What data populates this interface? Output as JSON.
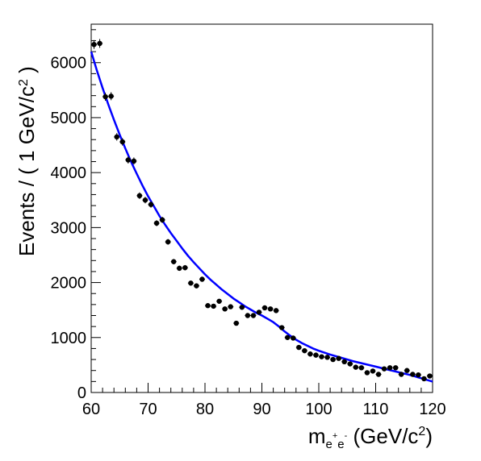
{
  "chart_data": {
    "type": "scatter",
    "title": "",
    "ylabel": {
      "prefix": "Events / ( 1 GeV/c",
      "sup": "2",
      "suffix": " )"
    },
    "xlabel": {
      "m": "m",
      "sub1": "e",
      "sup1": "+",
      "sub2": "e",
      "sup2": "-",
      "unit_prefix": " (GeV/c",
      "unit_sup": "2",
      "unit_suffix": ")"
    },
    "xlim": [
      60,
      120
    ],
    "ylim": [
      0,
      6700
    ],
    "x_ticks": [
      60,
      70,
      80,
      90,
      100,
      110,
      120
    ],
    "y_ticks": [
      0,
      1000,
      2000,
      3000,
      4000,
      5000,
      6000
    ],
    "grid": false,
    "colors": {
      "points": "#000000",
      "fit": "#0000ff"
    },
    "series": [
      {
        "kind": "data",
        "x": [
          60.5,
          61.5,
          62.5,
          63.5,
          64.5,
          65.5,
          66.5,
          67.5,
          68.5,
          69.5,
          70.5,
          71.5,
          72.5,
          73.5,
          74.5,
          75.5,
          76.5,
          77.5,
          78.5,
          79.5,
          80.5,
          81.5,
          82.5,
          83.5,
          84.5,
          85.5,
          86.5,
          87.5,
          88.5,
          89.5,
          90.5,
          91.5,
          92.5,
          93.5,
          94.5,
          95.5,
          96.5,
          97.5,
          98.5,
          99.5,
          100.5,
          101.5,
          102.5,
          103.5,
          104.5,
          105.5,
          106.5,
          107.5,
          108.5,
          109.5,
          110.5,
          111.5,
          112.5,
          113.5,
          114.5,
          115.5,
          116.5,
          117.5,
          118.5,
          119.5
        ],
        "y": [
          6330,
          6350,
          5380,
          5390,
          4650,
          4560,
          4230,
          4210,
          3580,
          3500,
          3420,
          3080,
          3140,
          2740,
          2380,
          2260,
          2270,
          1990,
          1940,
          2060,
          1580,
          1570,
          1660,
          1520,
          1560,
          1260,
          1550,
          1400,
          1400,
          1460,
          1540,
          1520,
          1490,
          1180,
          1000,
          990,
          820,
          760,
          700,
          680,
          650,
          640,
          600,
          620,
          560,
          520,
          460,
          450,
          360,
          390,
          330,
          430,
          450,
          450,
          330,
          400,
          330,
          320,
          250,
          300
        ],
        "yerr": [
          80,
          80,
          73,
          73,
          68,
          68,
          65,
          65,
          60,
          59,
          58,
          55,
          56,
          52,
          49,
          48,
          48,
          45,
          44,
          45,
          40,
          40,
          41,
          39,
          39,
          35,
          39,
          37,
          37,
          38,
          39,
          39,
          39,
          34,
          32,
          31,
          29,
          28,
          26,
          26,
          25,
          25,
          24,
          25,
          24,
          23,
          21,
          21,
          19,
          20,
          18,
          21,
          21,
          21,
          18,
          20,
          18,
          18,
          16,
          17
        ]
      },
      {
        "kind": "fit",
        "x": [
          60,
          61,
          62,
          63,
          64,
          65,
          66,
          67,
          68,
          69,
          70,
          71,
          72,
          73,
          74,
          75,
          76,
          77,
          78,
          79,
          80,
          81,
          82,
          83,
          84,
          85,
          86,
          87,
          88,
          89,
          90,
          91,
          92,
          93,
          94,
          95,
          96,
          97,
          98,
          99,
          100,
          102,
          104,
          106,
          108,
          110,
          112,
          114,
          116,
          118,
          120
        ],
        "y": [
          6200,
          5860,
          5540,
          5240,
          4960,
          4690,
          4440,
          4200,
          3980,
          3770,
          3570,
          3390,
          3210,
          3050,
          2900,
          2760,
          2620,
          2490,
          2370,
          2260,
          2150,
          2050,
          1960,
          1870,
          1790,
          1710,
          1640,
          1570,
          1510,
          1450,
          1400,
          1340,
          1280,
          1200,
          1110,
          1030,
          960,
          900,
          850,
          800,
          760,
          690,
          630,
          570,
          520,
          470,
          420,
          370,
          320,
          260,
          200
        ]
      }
    ]
  }
}
